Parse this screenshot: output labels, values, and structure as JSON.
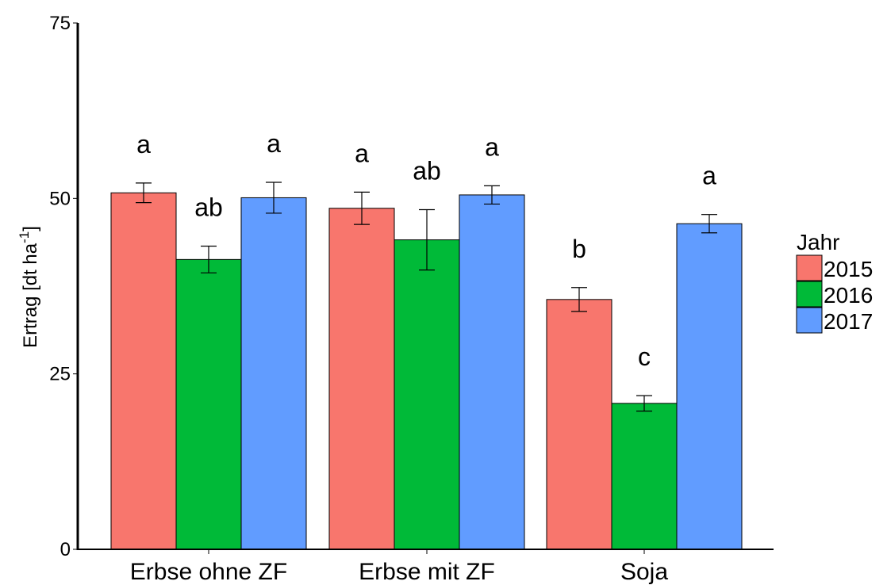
{
  "chart_data": {
    "type": "bar",
    "categories": [
      "Erbse ohne ZF",
      "Erbse mit ZF",
      "Soja"
    ],
    "series": [
      {
        "name": "2015",
        "color": "#f8766d",
        "values": [
          50.8,
          48.6,
          35.6
        ],
        "errors": [
          1.4,
          2.3,
          1.7
        ],
        "labels": [
          "a",
          "a",
          "b"
        ]
      },
      {
        "name": "2016",
        "color": "#00ba38",
        "values": [
          41.3,
          44.1,
          20.8
        ],
        "errors": [
          1.9,
          4.3,
          1.1
        ],
        "labels": [
          "ab",
          "ab",
          "c"
        ]
      },
      {
        "name": "2017",
        "color": "#619cff",
        "values": [
          50.1,
          50.5,
          46.4
        ],
        "errors": [
          2.2,
          1.3,
          1.3
        ],
        "labels": [
          "a",
          "a",
          "a"
        ]
      }
    ],
    "ylabel_main": "Ertrag [dt ha",
    "ylabel_exp": "-1",
    "ylabel_close": "]",
    "yticks": [
      "0",
      "25",
      "50",
      "75"
    ],
    "ytick_values": [
      0,
      25,
      50,
      75
    ],
    "ylim": [
      0,
      75
    ],
    "legend_title": "Jahr",
    "legend_position": "right",
    "grid": false
  }
}
